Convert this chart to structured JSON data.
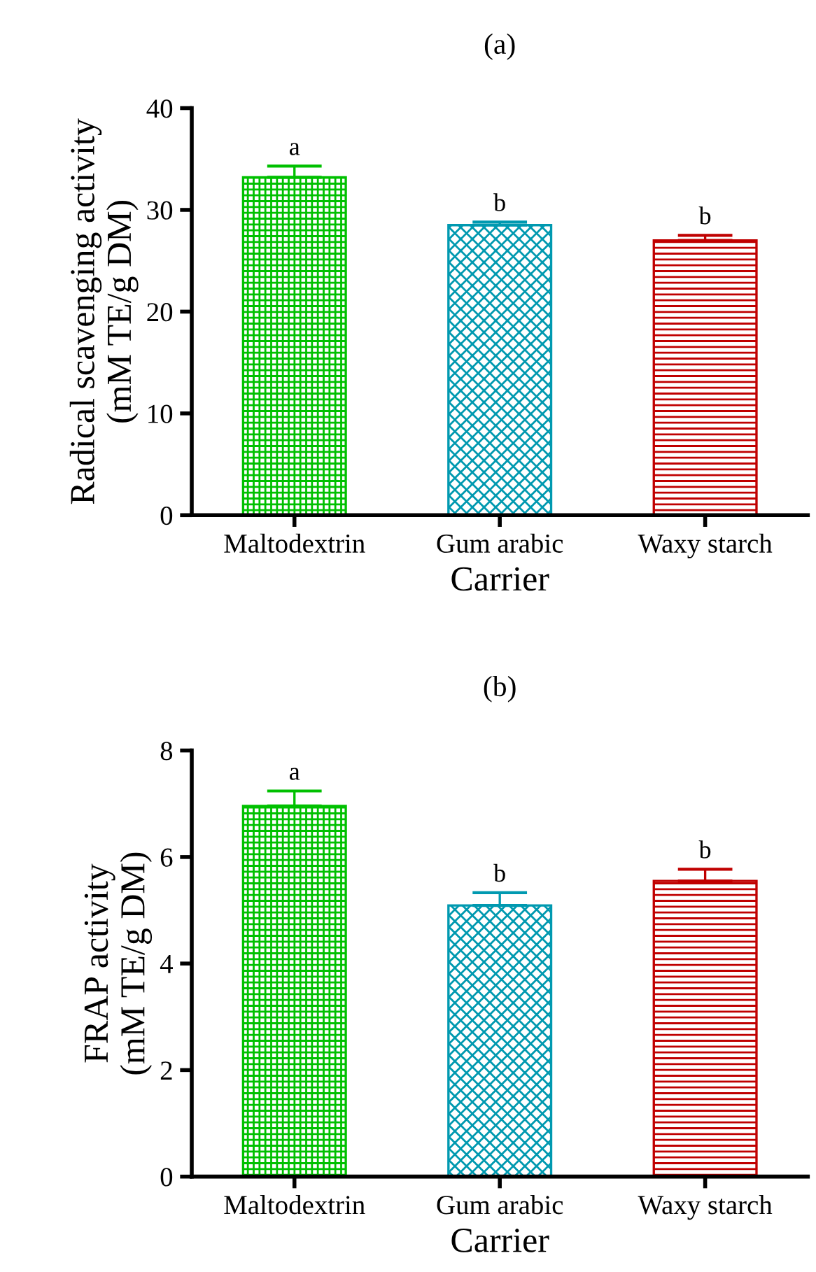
{
  "chart_data": [
    {
      "type": "bar",
      "title": "(a)",
      "xlabel": "Carrier",
      "ylabel": "Radical scavenging activity\n(mM TE/g DM)",
      "categories": [
        "Maltodextrin",
        "Gum arabic",
        "Waxy starch"
      ],
      "values": [
        33.2,
        28.5,
        27.0
      ],
      "errors": [
        1.1,
        0.3,
        0.5
      ],
      "colors": [
        "#00c000",
        "#0099b0",
        "#c00000"
      ],
      "ylim": [
        0,
        40
      ],
      "yticks": [
        0,
        10,
        20,
        30,
        40
      ],
      "grid": false,
      "legend": false,
      "annotations": [
        {
          "text": "a",
          "x": "Maltodextrin",
          "y": 34.3
        },
        {
          "text": "b",
          "x": "Gum arabic",
          "y": 28.8
        },
        {
          "text": "b",
          "x": "Waxy starch",
          "y": 27.5
        }
      ]
    },
    {
      "type": "bar",
      "title": "(b)",
      "xlabel": "Carrier",
      "ylabel": "FRAP activity\n(mM TE/g DM)",
      "categories": [
        "Maltodextrin",
        "Gum arabic",
        "Waxy starch"
      ],
      "values": [
        6.96,
        5.09,
        5.55
      ],
      "errors": [
        0.28,
        0.24,
        0.22
      ],
      "colors": [
        "#00c000",
        "#0099b0",
        "#c00000"
      ],
      "ylim": [
        0,
        8
      ],
      "yticks": [
        0,
        2,
        4,
        6,
        8
      ],
      "grid": false,
      "legend": false,
      "annotations": [
        {
          "text": "a",
          "x": "Maltodextrin",
          "y": 7.24
        },
        {
          "text": "b",
          "x": "Gum arabic",
          "y": 5.33
        },
        {
          "text": "b",
          "x": "Waxy starch",
          "y": 5.77
        }
      ]
    }
  ]
}
